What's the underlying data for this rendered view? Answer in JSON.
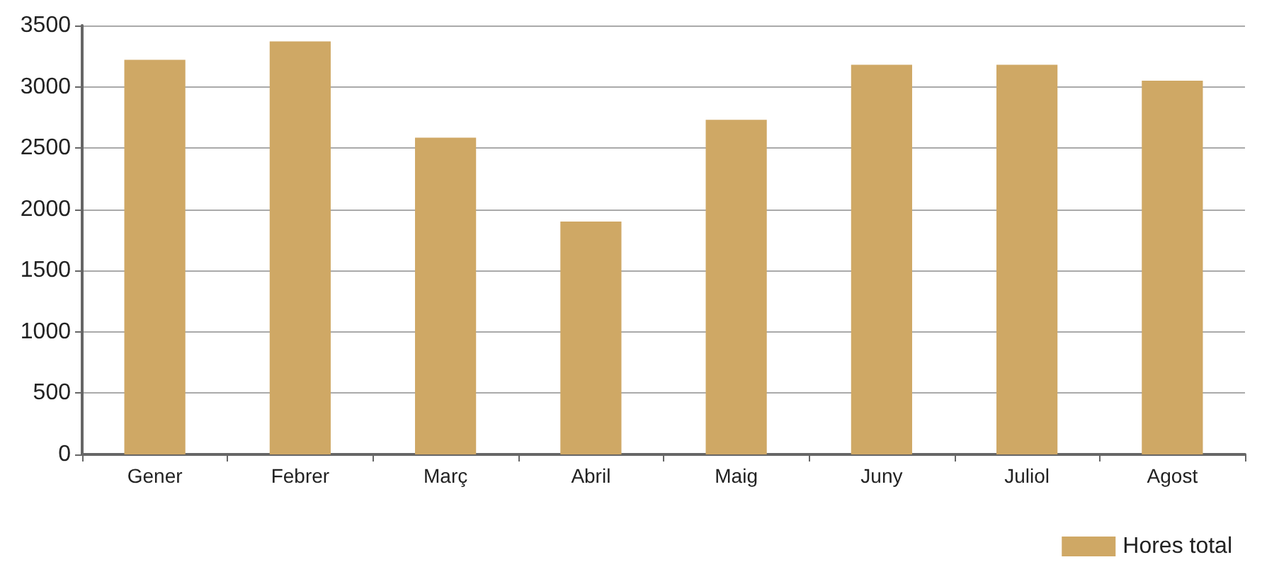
{
  "chart_data": {
    "type": "bar",
    "categories": [
      "Gener",
      "Febrer",
      "Març",
      "Abril",
      "Maig",
      "Juny",
      "Juliol",
      "Agost"
    ],
    "series": [
      {
        "name": "Hores total",
        "color": "#cfa865",
        "values": [
          3220,
          3370,
          2585,
          1900,
          2730,
          3180,
          3180,
          3050
        ]
      }
    ],
    "ylim": [
      0,
      3500
    ],
    "yticks": [
      0,
      500,
      1000,
      1500,
      2000,
      2500,
      3000,
      3500
    ],
    "grid": "y",
    "legend": "bottom right"
  }
}
